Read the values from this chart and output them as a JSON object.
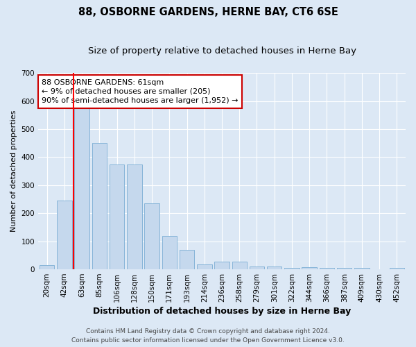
{
  "title": "88, OSBORNE GARDENS, HERNE BAY, CT6 6SE",
  "subtitle": "Size of property relative to detached houses in Herne Bay",
  "xlabel": "Distribution of detached houses by size in Herne Bay",
  "ylabel": "Number of detached properties",
  "categories": [
    "20sqm",
    "42sqm",
    "63sqm",
    "85sqm",
    "106sqm",
    "128sqm",
    "150sqm",
    "171sqm",
    "193sqm",
    "214sqm",
    "236sqm",
    "258sqm",
    "279sqm",
    "301sqm",
    "322sqm",
    "344sqm",
    "366sqm",
    "387sqm",
    "409sqm",
    "430sqm",
    "452sqm"
  ],
  "values": [
    15,
    245,
    590,
    450,
    375,
    375,
    235,
    120,
    70,
    18,
    28,
    28,
    10,
    10,
    5,
    8,
    5,
    5,
    5,
    0,
    5
  ],
  "bar_color": "#c5d8ed",
  "bar_edge_color": "#7aadd4",
  "red_line_index": 2,
  "annotation_line1": "88 OSBORNE GARDENS: 61sqm",
  "annotation_line2": "← 9% of detached houses are smaller (205)",
  "annotation_line3": "90% of semi-detached houses are larger (1,952) →",
  "annotation_box_color": "#ffffff",
  "annotation_box_edge": "#cc0000",
  "ylim": [
    0,
    700
  ],
  "yticks": [
    0,
    100,
    200,
    300,
    400,
    500,
    600,
    700
  ],
  "footer1": "Contains HM Land Registry data © Crown copyright and database right 2024.",
  "footer2": "Contains public sector information licensed under the Open Government Licence v3.0.",
  "title_fontsize": 10.5,
  "subtitle_fontsize": 9.5,
  "xlabel_fontsize": 9,
  "ylabel_fontsize": 8,
  "tick_fontsize": 7.5,
  "annotation_fontsize": 8,
  "footer_fontsize": 6.5,
  "background_color": "#dce8f5",
  "plot_bg_color": "#dce8f5",
  "grid_color": "#ffffff"
}
